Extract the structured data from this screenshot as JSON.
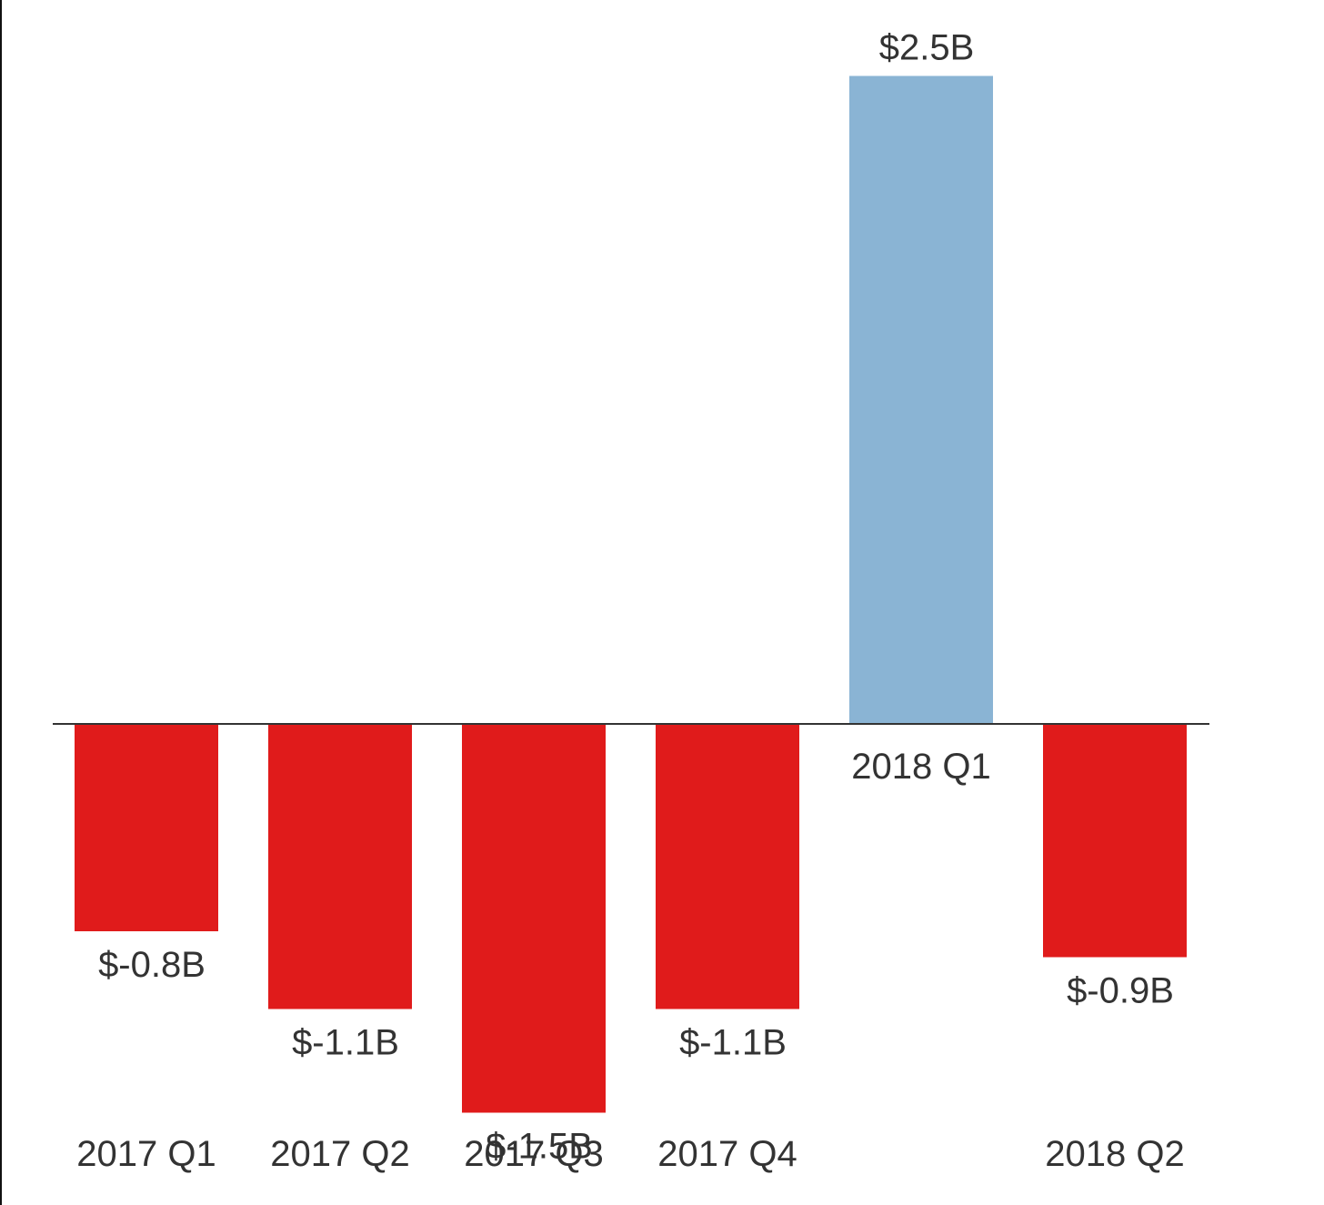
{
  "chart_data": {
    "type": "bar",
    "title": "",
    "xlabel": "",
    "ylabel": "",
    "categories": [
      "2017 Q1",
      "2017 Q2",
      "2017 Q3",
      "2017 Q4",
      "2018 Q1",
      "2018 Q2"
    ],
    "values": [
      -0.8,
      -1.1,
      -1.5,
      -1.1,
      2.5,
      -0.9
    ],
    "value_labels": [
      "$-0.8B",
      "$-1.1B",
      "$-1.5B",
      "$-1.1B",
      "$2.5B",
      "$-0.9B"
    ],
    "ylim": [
      -1.5,
      2.5
    ],
    "grid": false,
    "legend": "none",
    "colors": {
      "positive": "#8ab4d4",
      "negative": "#e01b1b",
      "zero_line": "#333333",
      "text": "#333333"
    }
  }
}
